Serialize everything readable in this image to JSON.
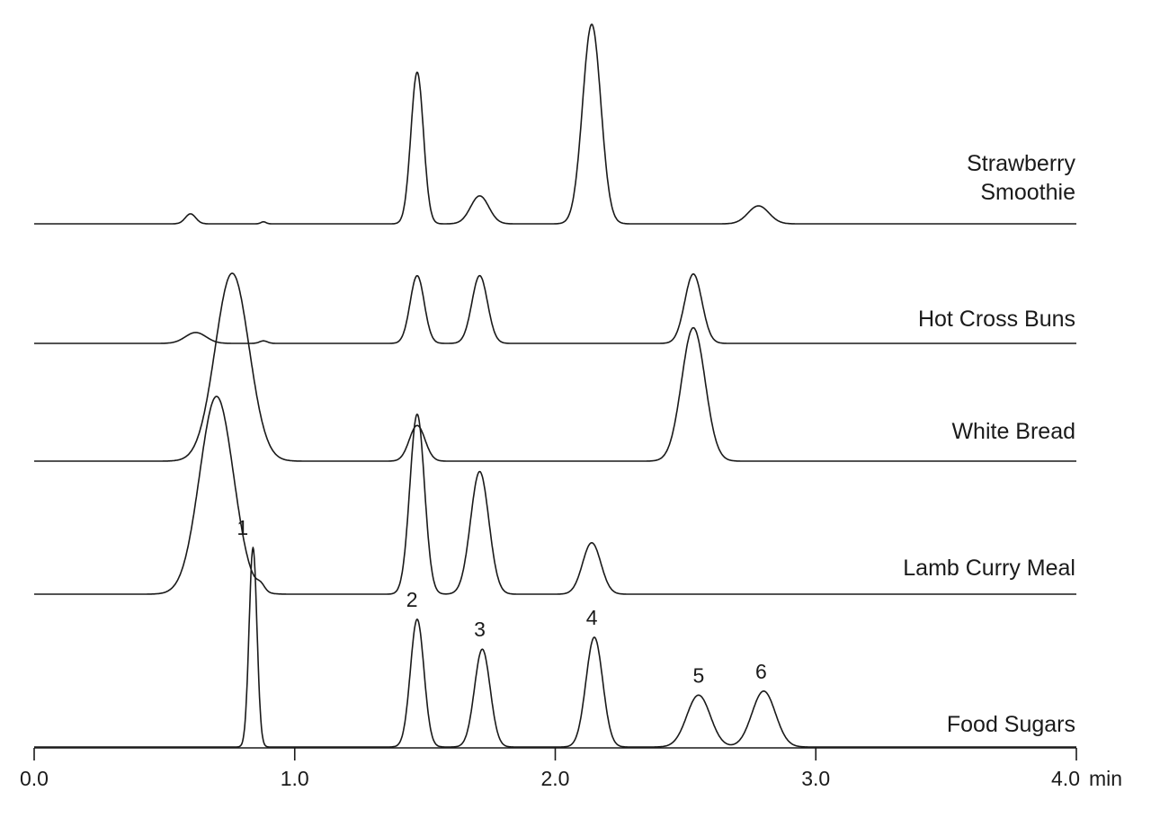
{
  "chart_data": {
    "type": "line",
    "title": "",
    "xlabel": "min",
    "ylabel": "",
    "xlim": [
      0.0,
      4.0
    ],
    "x_ticks": [
      {
        "value": 0.0,
        "label": "0.0"
      },
      {
        "value": 1.0,
        "label": "1.0"
      },
      {
        "value": 2.0,
        "label": "2.0"
      },
      {
        "value": 3.0,
        "label": "3.0",
        "color": "#7a2a45"
      },
      {
        "value": 4.0,
        "label": "4.0"
      }
    ],
    "x_unit_label": "min",
    "grid": false,
    "legend": "none",
    "line_color": "#1a1a1a",
    "series": [
      {
        "name": "Strawberry Smoothie",
        "label_lines": [
          "Strawberry",
          "Smoothie"
        ],
        "baseline": 0.0,
        "peaks": [
          {
            "rt": 0.6,
            "height": 0.05,
            "width": 0.02
          },
          {
            "rt": 0.88,
            "height": 0.01,
            "width": 0.01
          },
          {
            "rt": 1.47,
            "height": 0.76,
            "width": 0.024
          },
          {
            "rt": 1.71,
            "height": 0.14,
            "width": 0.035
          },
          {
            "rt": 2.14,
            "height": 1.0,
            "width": 0.035
          },
          {
            "rt": 2.78,
            "height": 0.09,
            "width": 0.04
          }
        ]
      },
      {
        "name": "Hot Cross Buns",
        "label_lines": [
          "Hot Cross Buns"
        ],
        "baseline": 0.0,
        "peaks": [
          {
            "rt": 0.62,
            "height": 0.13,
            "width": 0.04
          },
          {
            "rt": 0.88,
            "height": 0.03,
            "width": 0.015
          },
          {
            "rt": 1.47,
            "height": 0.81,
            "width": 0.027
          },
          {
            "rt": 1.71,
            "height": 0.81,
            "width": 0.03
          },
          {
            "rt": 2.53,
            "height": 0.83,
            "width": 0.033
          }
        ]
      },
      {
        "name": "White Bread",
        "label_lines": [
          "White Bread"
        ],
        "baseline": 0.0,
        "peaks": [
          {
            "rt": 0.76,
            "height": 1.0,
            "width": 0.065
          },
          {
            "rt": 1.47,
            "height": 0.19,
            "width": 0.03
          },
          {
            "rt": 2.53,
            "height": 0.71,
            "width": 0.045
          }
        ]
      },
      {
        "name": "Lamb Curry Meal",
        "label_lines": [
          "Lamb Curry Meal"
        ],
        "baseline": 0.0,
        "peaks": [
          {
            "rt": 0.7,
            "height": 1.0,
            "width": 0.065
          },
          {
            "rt": 0.87,
            "height": 0.03,
            "width": 0.015
          },
          {
            "rt": 1.47,
            "height": 0.91,
            "width": 0.028
          },
          {
            "rt": 1.71,
            "height": 0.62,
            "width": 0.035
          },
          {
            "rt": 2.14,
            "height": 0.26,
            "width": 0.035
          }
        ]
      },
      {
        "name": "Food Sugars",
        "label_lines": [
          "Food Sugars"
        ],
        "baseline": 0.0,
        "peaks": [
          {
            "rt": 0.84,
            "height": 1.0,
            "width": 0.015
          },
          {
            "rt": 1.47,
            "height": 0.64,
            "width": 0.026
          },
          {
            "rt": 1.72,
            "height": 0.49,
            "width": 0.03
          },
          {
            "rt": 2.15,
            "height": 0.55,
            "width": 0.032
          },
          {
            "rt": 2.55,
            "height": 0.26,
            "width": 0.045
          },
          {
            "rt": 2.8,
            "height": 0.28,
            "width": 0.045
          }
        ]
      }
    ],
    "peak_annotations": [
      {
        "label": "1",
        "rt": 0.8
      },
      {
        "label": "2",
        "rt": 1.45
      },
      {
        "label": "3",
        "rt": 1.71
      },
      {
        "label": "4",
        "rt": 2.14
      },
      {
        "label": "5",
        "rt": 2.55
      },
      {
        "label": "6",
        "rt": 2.79
      }
    ]
  }
}
